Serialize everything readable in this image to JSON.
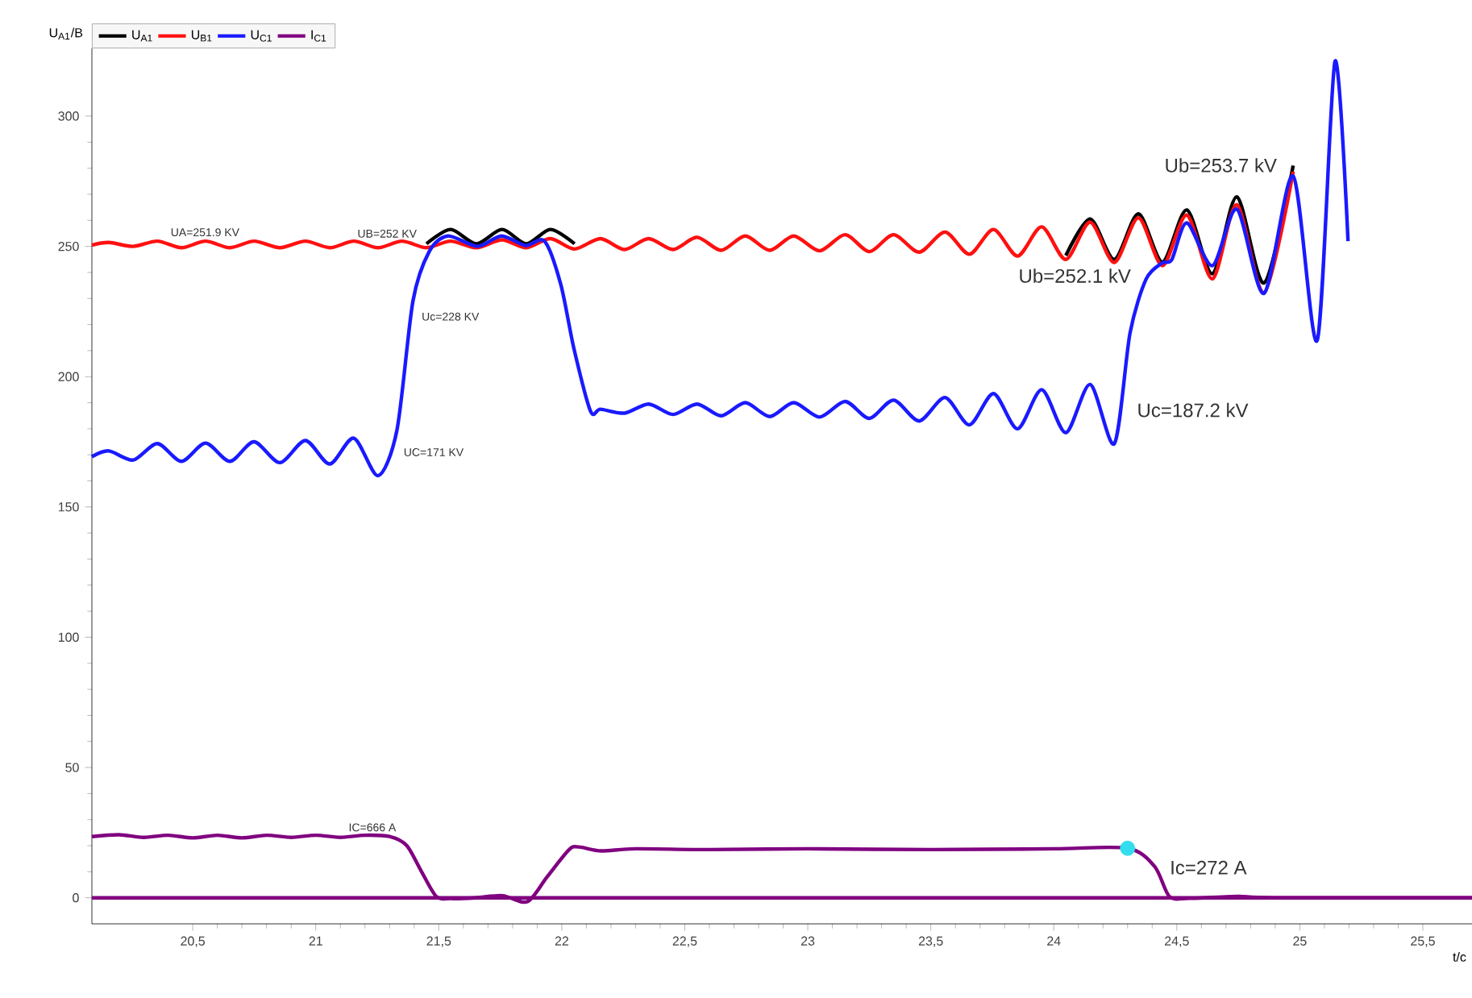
{
  "chart_data": {
    "type": "line",
    "xlabel": "t/c",
    "ylabel": "U$_{A1}$/B",
    "xlim": [
      20.09,
      25.7
    ],
    "ylim": [
      -10,
      326
    ],
    "xticks": [
      {
        "value": 20.5,
        "label": "20,5"
      },
      21,
      {
        "value": 21.5,
        "label": "21,5"
      },
      22,
      {
        "value": 22.5,
        "label": "22,5"
      },
      23,
      {
        "value": 23.5,
        "label": "23,5"
      },
      24,
      {
        "value": 24.5,
        "label": "24,5"
      },
      25,
      {
        "value": 25.5,
        "label": "25,5"
      }
    ],
    "yticks": [
      0,
      50,
      100,
      150,
      200,
      250,
      300
    ],
    "legend": "top left",
    "series": [
      {
        "name": "U$_{A1}$",
        "color": "#000000",
        "x": [
          21.45,
          21.548,
          21.653,
          21.757,
          21.856,
          21.954,
          22.052
        ],
        "values": [
          251,
          256.5,
          251,
          256.5,
          251,
          256.5,
          251
        ]
      },
      {
        "color": "#000000",
        "x": [
          24.049,
          24.148,
          24.246,
          24.344,
          24.442,
          24.541,
          24.645,
          24.744,
          24.855,
          24.973
        ],
        "values": [
          246.5,
          260.5,
          245,
          262.5,
          244,
          264,
          239.5,
          269,
          236,
          281
        ]
      },
      {
        "name": "U$_{B1}$",
        "color": "#ff1010",
        "x": [
          20.09,
          20.159,
          20.258,
          20.356,
          20.454,
          20.552,
          20.651,
          20.749,
          20.854,
          20.958,
          21.057,
          21.155,
          21.253,
          21.351,
          21.45,
          21.548,
          21.653,
          21.757,
          21.856,
          21.954,
          22.052,
          22.157,
          22.255,
          22.353,
          22.452,
          22.55,
          22.648,
          22.746,
          22.845,
          22.943,
          23.048,
          23.152,
          23.25,
          23.349,
          23.453,
          23.558,
          23.657,
          23.755,
          23.853,
          23.951,
          24.049,
          24.148,
          24.246,
          24.344,
          24.442,
          24.541,
          24.645,
          24.744,
          24.855,
          24.973
        ],
        "values": [
          250.5,
          251.5,
          250,
          252,
          249.5,
          252,
          249.5,
          252,
          249.5,
          252,
          249.5,
          252,
          249.5,
          252,
          249.5,
          252,
          249.5,
          252.5,
          249.5,
          253,
          249,
          253,
          248.8,
          253,
          248.8,
          253.5,
          248.5,
          254,
          248.5,
          254,
          248.3,
          254.5,
          248,
          254.5,
          247.8,
          255.5,
          247,
          256.5,
          246.3,
          257.5,
          245,
          259.3,
          243.8,
          261,
          242.6,
          262,
          237.5,
          266,
          232.2,
          278.7
        ]
      },
      {
        "name": "U$_{C1}$",
        "color": "#1a1aff",
        "x": [
          20.09,
          20.159,
          20.258,
          20.356,
          20.454,
          20.552,
          20.651,
          20.749,
          20.854,
          20.958,
          21.057,
          21.155,
          21.253,
          21.33,
          21.395,
          21.461,
          21.537,
          21.657,
          21.755,
          21.853,
          21.93,
          21.996,
          22.05,
          22.117,
          22.157,
          22.255,
          22.353,
          22.452,
          22.55,
          22.648,
          22.746,
          22.845,
          22.943,
          23.048,
          23.152,
          23.25,
          23.349,
          23.453,
          23.558,
          23.657,
          23.755,
          23.853,
          23.951,
          24.049,
          24.148,
          24.246,
          24.31,
          24.375,
          24.44,
          24.48,
          24.541,
          24.645,
          24.744,
          24.855,
          24.973,
          25.071,
          25.143,
          25.196
        ],
        "values": [
          169.3,
          171.5,
          168,
          174.3,
          167.5,
          174.5,
          167.5,
          175,
          167,
          175.5,
          166.5,
          176.4,
          162,
          179.5,
          229,
          248,
          254,
          250,
          254,
          250.3,
          252,
          235.4,
          210.5,
          186.7,
          187.5,
          186,
          189.5,
          185.5,
          189.5,
          185,
          190,
          184.7,
          190,
          184.5,
          190.5,
          184,
          191,
          183,
          192,
          181.5,
          193.5,
          180,
          195,
          178.5,
          197,
          174.3,
          216.8,
          237.4,
          243.6,
          245,
          259,
          242.6,
          264.3,
          232,
          277,
          214,
          321,
          252
        ]
      },
      {
        "name": "I$_{C1}$",
        "color": "#800080",
        "x": [
          20.09,
          20.2,
          20.3,
          20.4,
          20.5,
          20.6,
          20.7,
          20.8,
          20.9,
          21.0,
          21.1,
          21.2,
          21.3,
          21.37,
          21.43,
          21.49,
          21.55,
          21.65,
          21.76,
          21.86,
          21.94,
          22.03,
          22.07,
          22.16,
          22.3,
          22.6,
          23.0,
          23.5,
          24.0,
          24.3,
          24.41,
          24.47,
          24.55,
          24.75,
          24.9,
          25.7
        ],
        "values": [
          23.5,
          24.2,
          23.2,
          24,
          23,
          24,
          23,
          24,
          23.2,
          24,
          23.2,
          24,
          23.5,
          20,
          10,
          0.5,
          -0.3,
          0,
          0.8,
          -1.5,
          8,
          18.5,
          19.5,
          18,
          18.8,
          18.5,
          18.8,
          18.5,
          18.8,
          19,
          12,
          0.5,
          -0.2,
          0.5,
          0,
          0
        ]
      },
      {
        "color": "#800080",
        "x": [
          20.09,
          25.7
        ],
        "values": [
          0,
          0
        ]
      },
      {
        "type": "scatter",
        "color": "#33ddee",
        "x": [
          24.3
        ],
        "values": [
          19
        ]
      }
    ],
    "annotations": [
      {
        "text": "UA=251.9 KV",
        "x": 20.55,
        "y": 251.9
      },
      {
        "text": "UB=252 KV",
        "x": 21.29,
        "y": 252
      },
      {
        "text": "Uc=228 KV",
        "x": 21.39,
        "y": 228
      },
      {
        "text": "UC=171 KV",
        "x": 21.33,
        "y": 171
      },
      {
        "text": "Ub=253.7 kV",
        "x": 24.744,
        "y": 269
      },
      {
        "text": "Ub=252.1 kV",
        "x": 24.19,
        "y": 252.1
      },
      {
        "text": "Uc=187.2 kV",
        "x": 24.265,
        "y": 187.2
      },
      {
        "text": "IC=666 A",
        "x": 21.23,
        "y": 23.5
      },
      {
        "text": "Ic=272 A",
        "x": 24.3,
        "y": 19
      }
    ]
  }
}
